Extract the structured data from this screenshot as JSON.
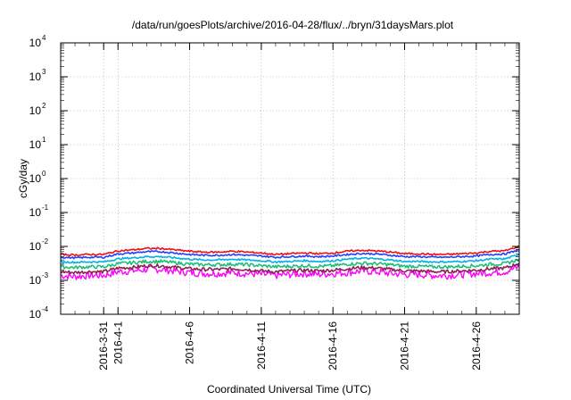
{
  "chart_data": {
    "type": "line",
    "title": "/data/run/goesPlots/archive/2016-04-28/flux/../bryn/31daysMars.plot",
    "xlabel": "Coordinated Universal Time (UTC)",
    "ylabel": "cGy/day",
    "yscale": "log",
    "ylim": [
      0.0001,
      10000
    ],
    "xlim": [
      "2016-03-28",
      "2016-04-29"
    ],
    "grid": true,
    "y_ticks": [
      {
        "base": "10",
        "exp": "-4"
      },
      {
        "base": "10",
        "exp": "-3"
      },
      {
        "base": "10",
        "exp": "-2"
      },
      {
        "base": "10",
        "exp": "-1"
      },
      {
        "base": "10",
        "exp": "0"
      },
      {
        "base": "10",
        "exp": "1"
      },
      {
        "base": "10",
        "exp": "2"
      },
      {
        "base": "10",
        "exp": "3"
      },
      {
        "base": "10",
        "exp": "4"
      }
    ],
    "x_ticks": [
      "2016-3-31",
      "2016-4-1",
      "2016-4-6",
      "2016-4-11",
      "2016-4-16",
      "2016-4-21",
      "2016-4-26"
    ],
    "x": [
      "2016-03-28",
      "2016-03-29",
      "2016-03-30",
      "2016-03-31",
      "2016-04-01",
      "2016-04-02",
      "2016-04-03",
      "2016-04-04",
      "2016-04-05",
      "2016-04-06",
      "2016-04-07",
      "2016-04-08",
      "2016-04-09",
      "2016-04-10",
      "2016-04-11",
      "2016-04-12",
      "2016-04-13",
      "2016-04-14",
      "2016-04-15",
      "2016-04-16",
      "2016-04-17",
      "2016-04-18",
      "2016-04-19",
      "2016-04-20",
      "2016-04-21",
      "2016-04-22",
      "2016-04-23",
      "2016-04-24",
      "2016-04-25",
      "2016-04-26",
      "2016-04-27",
      "2016-04-28",
      "2016-04-29"
    ],
    "series": [
      {
        "color": "#ff00ff",
        "values": [
          0.0014,
          0.0013,
          0.0014,
          0.0014,
          0.0018,
          0.0019,
          0.0021,
          0.0021,
          0.0019,
          0.0017,
          0.0016,
          0.0016,
          0.0017,
          0.0016,
          0.0015,
          0.0014,
          0.0015,
          0.0016,
          0.0015,
          0.0016,
          0.0017,
          0.0019,
          0.0018,
          0.0016,
          0.0015,
          0.0015,
          0.0014,
          0.0014,
          0.0015,
          0.0016,
          0.0017,
          0.0018,
          0.0025
        ]
      },
      {
        "color": "#8b2252",
        "values": [
          0.0018,
          0.0017,
          0.0018,
          0.0018,
          0.0023,
          0.0024,
          0.0027,
          0.0027,
          0.0024,
          0.0022,
          0.0021,
          0.0021,
          0.0022,
          0.0021,
          0.0019,
          0.0018,
          0.0019,
          0.002,
          0.0019,
          0.002,
          0.0022,
          0.0024,
          0.0023,
          0.0021,
          0.0019,
          0.0019,
          0.0018,
          0.0018,
          0.0019,
          0.002,
          0.0022,
          0.0023,
          0.0032
        ]
      },
      {
        "color": "#1bbf7a",
        "values": [
          0.0025,
          0.0024,
          0.0025,
          0.0025,
          0.0031,
          0.0033,
          0.0036,
          0.0036,
          0.0033,
          0.003,
          0.0029,
          0.0029,
          0.003,
          0.0029,
          0.0027,
          0.0025,
          0.0026,
          0.0027,
          0.0026,
          0.0027,
          0.003,
          0.0032,
          0.0031,
          0.0029,
          0.0026,
          0.0026,
          0.0025,
          0.0025,
          0.0026,
          0.0027,
          0.003,
          0.0031,
          0.0042
        ]
      },
      {
        "color": "#00b0e8",
        "values": [
          0.0035,
          0.0034,
          0.0035,
          0.0035,
          0.0043,
          0.0046,
          0.005,
          0.005,
          0.0046,
          0.0042,
          0.004,
          0.004,
          0.0042,
          0.004,
          0.0038,
          0.0035,
          0.0036,
          0.0038,
          0.0036,
          0.0038,
          0.0042,
          0.0045,
          0.0043,
          0.004,
          0.0036,
          0.0036,
          0.0035,
          0.0035,
          0.0036,
          0.0038,
          0.0042,
          0.0043,
          0.0058
        ]
      },
      {
        "color": "#2040ff",
        "values": [
          0.0048,
          0.0046,
          0.0048,
          0.0048,
          0.006,
          0.0064,
          0.007,
          0.007,
          0.0064,
          0.0058,
          0.0055,
          0.0055,
          0.0058,
          0.0055,
          0.0052,
          0.0048,
          0.005,
          0.0052,
          0.005,
          0.0052,
          0.0058,
          0.0062,
          0.006,
          0.0055,
          0.005,
          0.005,
          0.0048,
          0.0048,
          0.005,
          0.0052,
          0.0058,
          0.006,
          0.008
        ]
      },
      {
        "color": "#ee1111",
        "values": [
          0.0058,
          0.0056,
          0.0058,
          0.0058,
          0.0074,
          0.0079,
          0.0087,
          0.0087,
          0.0079,
          0.0072,
          0.0068,
          0.0068,
          0.0072,
          0.0068,
          0.0064,
          0.0058,
          0.0061,
          0.0064,
          0.0061,
          0.0064,
          0.0072,
          0.0077,
          0.0074,
          0.0068,
          0.0061,
          0.0061,
          0.0058,
          0.0058,
          0.0061,
          0.0064,
          0.0072,
          0.0074,
          0.01
        ]
      }
    ]
  }
}
